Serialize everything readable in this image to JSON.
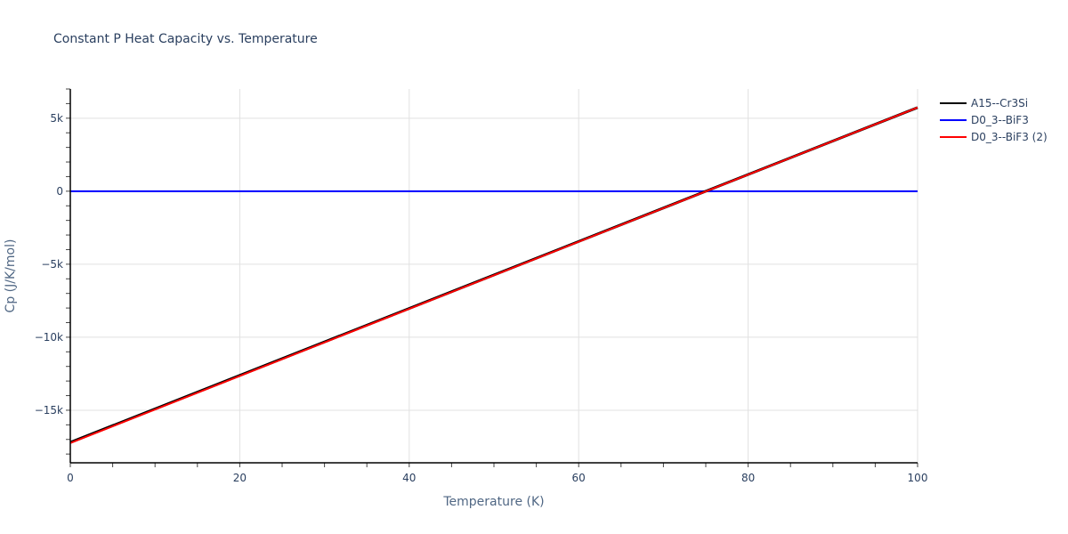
{
  "chart_data": {
    "type": "line",
    "title": "Constant P Heat Capacity vs. Temperature",
    "xlabel": "Temperature (K)",
    "ylabel": "Cp (J/K/mol)",
    "xlim": [
      0,
      100
    ],
    "ylim": [
      -18600,
      7000
    ],
    "x_ticks": [
      0,
      20,
      40,
      60,
      80,
      100
    ],
    "x_tick_labels": [
      "0",
      "20",
      "40",
      "60",
      "80",
      "100"
    ],
    "y_ticks": [
      -15000,
      -10000,
      -5000,
      0,
      5000
    ],
    "y_tick_labels": [
      "−15k",
      "−10k",
      "−5k",
      "0",
      "5k"
    ],
    "grid": true,
    "legend_position": "right",
    "series": [
      {
        "name": "A15--Cr3Si",
        "color": "#000000",
        "x": [
          0,
          100
        ],
        "y": [
          -17200,
          5730
        ]
      },
      {
        "name": "D0_3--BiF3",
        "color": "#0000ff",
        "x": [
          0,
          100
        ],
        "y": [
          0,
          0
        ]
      },
      {
        "name": "D0_3--BiF3 (2)",
        "color": "#ff0000",
        "x": [
          0,
          100
        ],
        "y": [
          -17250,
          5730
        ]
      }
    ]
  }
}
